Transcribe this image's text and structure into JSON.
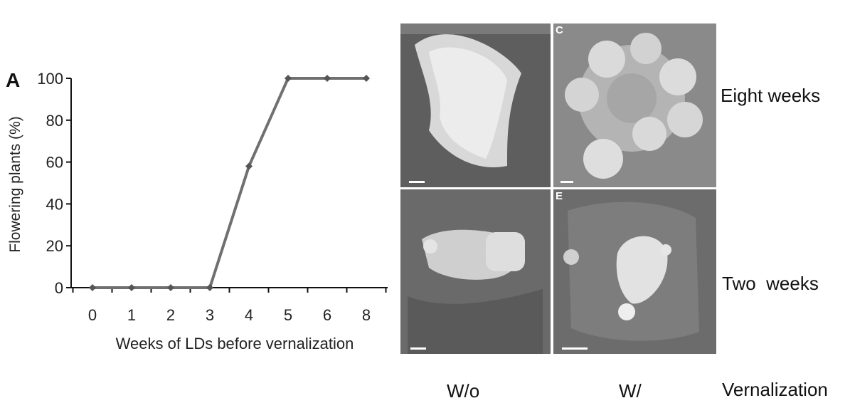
{
  "chart_data": {
    "type": "line",
    "panel_label": "A",
    "title": "",
    "xlabel": "Weeks of LDs before vernalization",
    "ylabel": "Flowering plants (%)",
    "categories": [
      "0",
      "1",
      "2",
      "3",
      "4",
      "5",
      "6",
      "8"
    ],
    "values": [
      0,
      0,
      0,
      0,
      58,
      100,
      100,
      100
    ],
    "ylim": [
      0,
      100
    ],
    "yticks": [
      0,
      20,
      40,
      60,
      80,
      100
    ],
    "grid": false,
    "legend": "none",
    "line_color": "#707070"
  },
  "micrographs": {
    "panels": [
      {
        "label": "",
        "row": "Eight weeks",
        "column": "W/o"
      },
      {
        "label": "C",
        "row": "Eight weeks",
        "column": "W/"
      },
      {
        "label": "",
        "row": "Two  weeks",
        "column": "W/o"
      },
      {
        "label": "E",
        "row": "Two  weeks",
        "column": "W/"
      }
    ],
    "row_labels": [
      "Eight weeks",
      "Two  weeks"
    ],
    "column_labels": [
      "W/o",
      "W/"
    ],
    "axis_label": "Vernalization"
  }
}
